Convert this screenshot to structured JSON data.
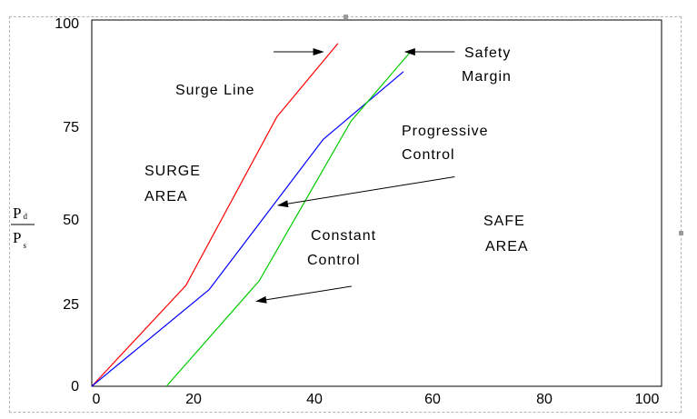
{
  "chart_data": {
    "type": "line",
    "ylabel": {
      "numerator": "P",
      "numerator_sub": "d",
      "denominator": "P",
      "denominator_sub": "s"
    },
    "xlim": [
      0,
      100
    ],
    "ylim": [
      0,
      100
    ],
    "x_ticks": [
      "0",
      "20",
      "40",
      "60",
      "80",
      "100"
    ],
    "y_ticks": [
      "100",
      "75",
      "50",
      "25",
      "0"
    ],
    "grid": false,
    "series": [
      {
        "color": "#ff0000",
        "x": [
          0,
          16.5,
          32.5,
          43.2
        ],
        "y": [
          0,
          27.5,
          73.6,
          93.6
        ]
      },
      {
        "color": "#0000ff",
        "x": [
          0,
          20.6,
          40.6,
          54.7
        ],
        "y": [
          0,
          26.4,
          67.4,
          85.9
        ]
      },
      {
        "color": "#00cc00",
        "x": [
          13.1,
          29.4,
          45.5,
          56.1
        ],
        "y": [
          0,
          28.8,
          72.4,
          91.6
        ]
      }
    ],
    "annotations": [
      {
        "id": "surge-line",
        "lines": [
          "Surge Line"
        ]
      },
      {
        "id": "surge-area",
        "lines": [
          "SURGE",
          "AREA"
        ]
      },
      {
        "id": "progressive-control",
        "lines": [
          "Progressive",
          "Control"
        ]
      },
      {
        "id": "constant-control",
        "lines": [
          "Constant",
          "Control"
        ]
      },
      {
        "id": "safe-area",
        "lines": [
          "SAFE",
          "AREA"
        ]
      },
      {
        "id": "safety-margin",
        "lines": [
          "Safety",
          "Margin"
        ]
      }
    ],
    "arrows": [
      {
        "id": "progressive-arrow",
        "from": [
          63.7,
          57.2
        ],
        "to": [
          32.7,
          49.4
        ]
      },
      {
        "id": "constant-arrow",
        "from": [
          45.6,
          27.3
        ],
        "to": [
          28.9,
          23.2
        ]
      },
      {
        "id": "safety-margin-left-arrow",
        "from": [
          31.9,
          91.3
        ],
        "to": [
          40.6,
          91.3
        ]
      },
      {
        "id": "safety-margin-right-arrow",
        "from": [
          63.7,
          91.3
        ],
        "to": [
          55.0,
          91.3
        ]
      }
    ],
    "colors": {
      "axis": "#000000",
      "text": "#000000",
      "arrow": "#000000"
    }
  }
}
